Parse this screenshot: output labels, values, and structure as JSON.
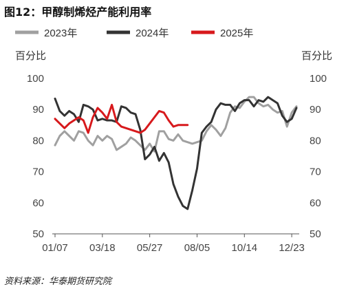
{
  "header": {
    "title": "图12：甲醇制烯烃产能利用率",
    "source": "资料来源：华泰期货研究院"
  },
  "chart_data": {
    "type": "line",
    "y_unit_left": "百分比",
    "y_unit_right": "百分比",
    "ylim": [
      50,
      100
    ],
    "yticks": [
      50,
      60,
      70,
      80,
      90,
      100
    ],
    "x_domain": [
      1,
      52
    ],
    "xticks": [
      {
        "label": "01/07",
        "x": 1
      },
      {
        "label": "03/18",
        "x": 11
      },
      {
        "label": "05/27",
        "x": 21
      },
      {
        "label": "08/05",
        "x": 31
      },
      {
        "label": "10/14",
        "x": 41
      },
      {
        "label": "12/23",
        "x": 51
      }
    ],
    "grid": false,
    "legend": "top",
    "series": [
      {
        "name": "2023年",
        "color": "#a0a0a0",
        "x": [
          1,
          2,
          3,
          4,
          5,
          6,
          7,
          8,
          9,
          10,
          11,
          12,
          13,
          14,
          15,
          16,
          17,
          18,
          19,
          20,
          21,
          22,
          23,
          24,
          25,
          26,
          27,
          28,
          29,
          30,
          31,
          32,
          33,
          34,
          35,
          36,
          37,
          38,
          39,
          40,
          41,
          42,
          43,
          44,
          45,
          46,
          47,
          48,
          49,
          50,
          51,
          52
        ],
        "values": [
          78.5,
          81.5,
          83,
          81.5,
          80,
          83,
          82.5,
          80,
          78.5,
          81.5,
          80,
          81.5,
          80.5,
          77,
          78,
          79,
          81,
          80,
          78.5,
          77,
          79,
          76.5,
          83,
          83,
          80.5,
          80,
          82,
          80,
          79.5,
          79,
          79.5,
          80,
          83,
          85,
          83.5,
          81.5,
          84,
          89,
          91,
          90.5,
          92.5,
          94,
          94,
          92,
          91,
          91.5,
          90,
          89,
          89.5,
          84.5,
          89,
          91
        ]
      },
      {
        "name": "2024年",
        "color": "#333333",
        "x": [
          1,
          2,
          3,
          4,
          5,
          6,
          7,
          8,
          9,
          10,
          11,
          12,
          13,
          14,
          15,
          16,
          17,
          18,
          19,
          20,
          21,
          22,
          23,
          24,
          25,
          26,
          27,
          28,
          29,
          30,
          31,
          32,
          33,
          34,
          35,
          36,
          37,
          38,
          39,
          40,
          41,
          42,
          43,
          44,
          45,
          46,
          47,
          48,
          49,
          50,
          51,
          52
        ],
        "values": [
          93.5,
          89.5,
          88,
          89.5,
          88.5,
          86,
          91.5,
          91,
          90,
          86.5,
          87,
          86.5,
          86.5,
          86,
          91,
          90.5,
          89,
          88.5,
          83.5,
          74,
          75.5,
          78,
          73.5,
          76,
          73,
          66,
          62,
          59,
          58,
          64,
          71,
          82.5,
          84.5,
          86,
          90,
          92,
          91.5,
          91.5,
          89.5,
          92,
          93,
          93,
          91,
          93,
          92.5,
          94,
          93,
          92,
          88,
          86,
          87,
          90.5
        ]
      },
      {
        "name": "2025年",
        "color": "#d7191c",
        "x": [
          1,
          2,
          3,
          4,
          5,
          6,
          7,
          8,
          9,
          10,
          11,
          12,
          13,
          14,
          15,
          16,
          17,
          18,
          19,
          20,
          21,
          22,
          23,
          24,
          25,
          26,
          27,
          28,
          29
        ],
        "values": [
          87,
          85.5,
          84,
          85.5,
          86.5,
          87.5,
          86.5,
          82.5,
          87.5,
          90.5,
          89,
          87,
          91.5,
          86,
          84.5,
          84,
          83.5,
          83,
          82.5,
          83.5,
          85.5,
          87.5,
          89.5,
          89,
          86.5,
          84.5,
          85,
          85,
          85
        ]
      }
    ]
  }
}
